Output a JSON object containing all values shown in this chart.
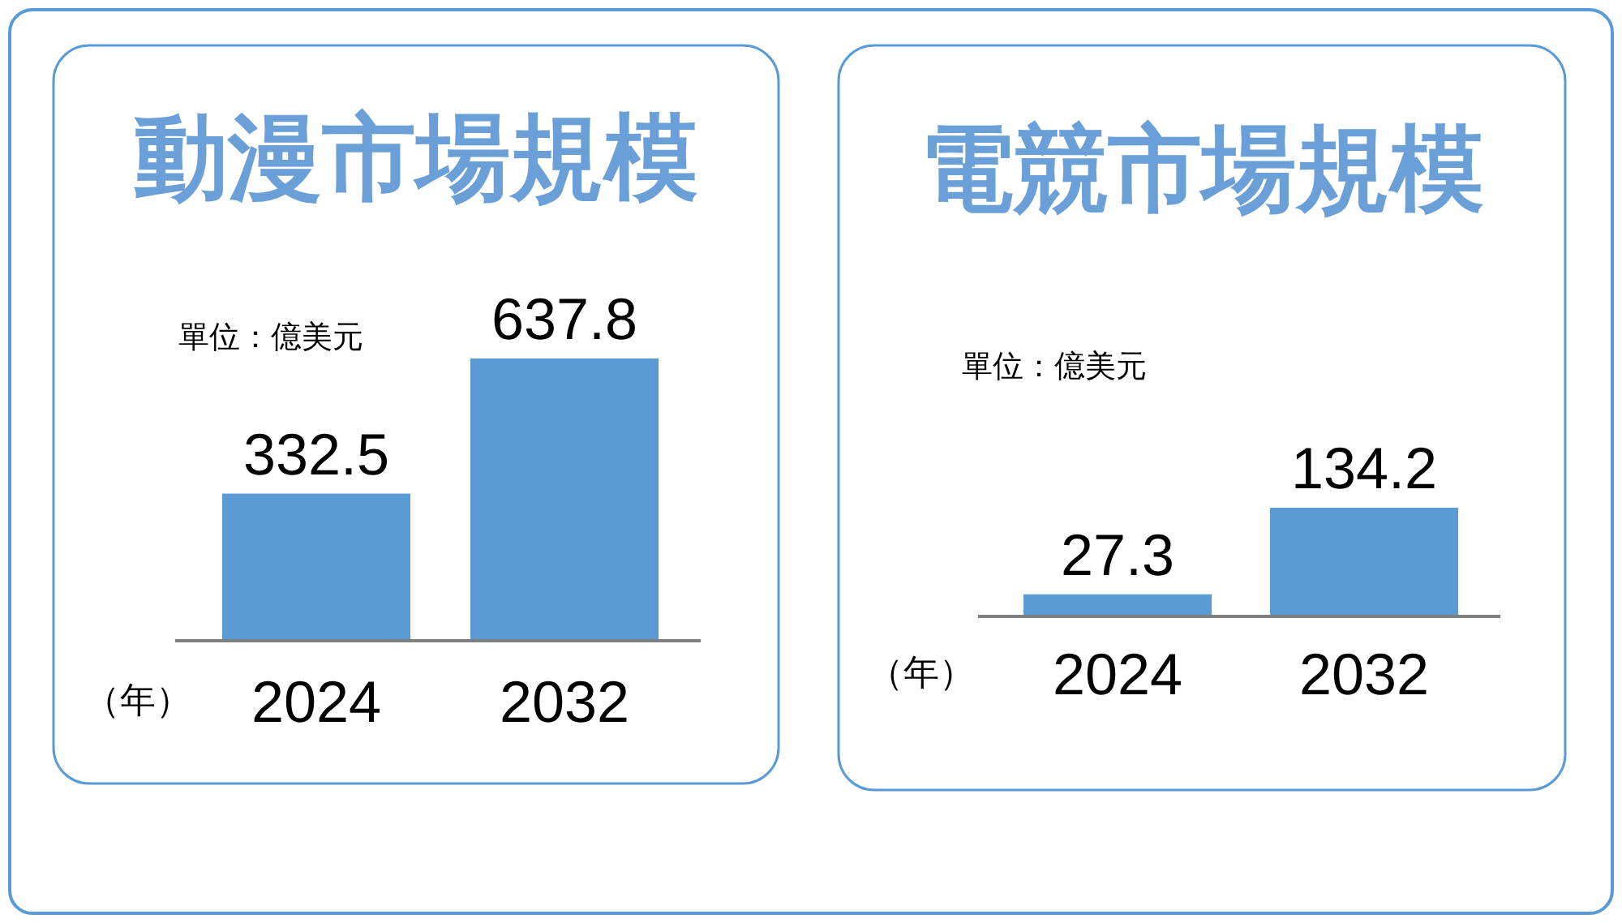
{
  "chart_data": [
    {
      "type": "bar",
      "title": "動漫市場規模",
      "xlabel": "（年）",
      "categories": [
        "2024",
        "2032"
      ],
      "values": [
        332.5,
        637.8
      ],
      "color": "#5b9bd5",
      "data_labels": true,
      "annotations": [
        "單位：億美元"
      ]
    },
    {
      "type": "bar",
      "title": "電競市場規模",
      "xlabel": "（年）",
      "categories": [
        "2024",
        "2032"
      ],
      "values": [
        27.3,
        134.2
      ],
      "color": "#5b9bd5",
      "data_labels": true,
      "annotations": [
        "單位：億美元"
      ]
    }
  ]
}
